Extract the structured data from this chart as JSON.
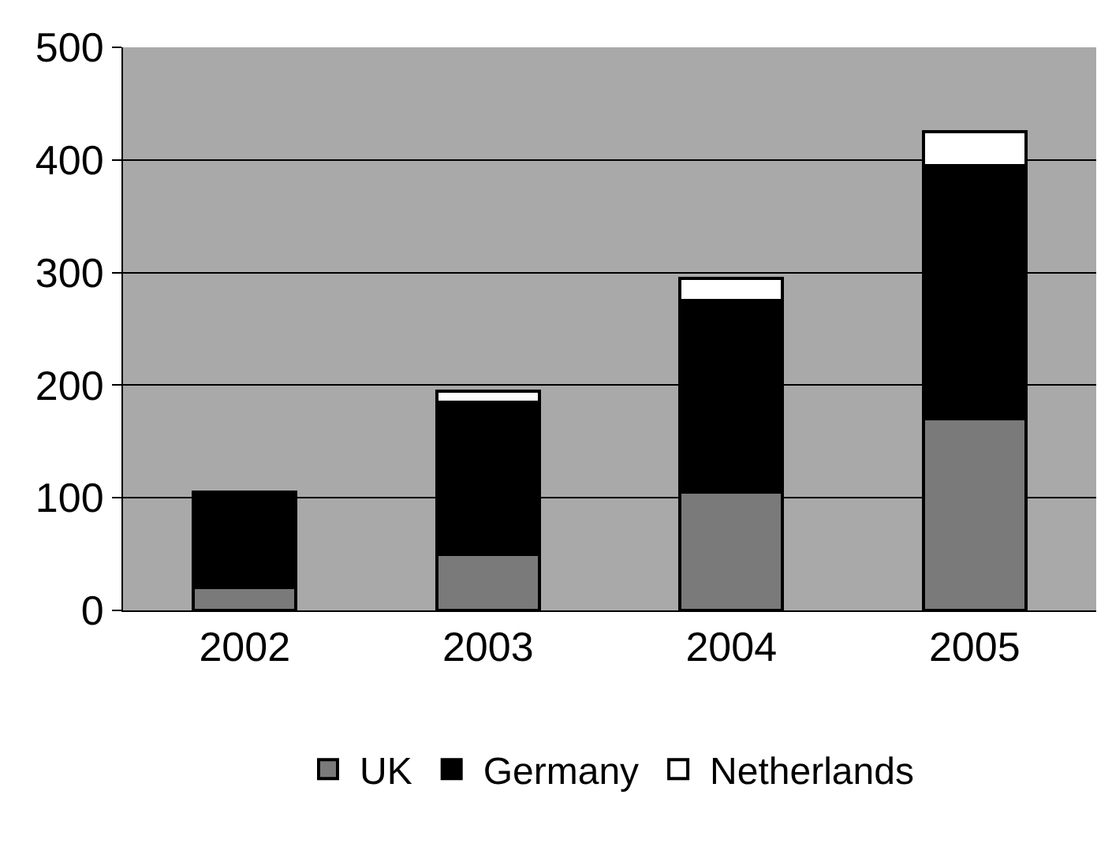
{
  "chart_data": {
    "type": "bar",
    "stacked": true,
    "categories": [
      "2002",
      "2003",
      "2004",
      "2005"
    ],
    "series": [
      {
        "name": "UK",
        "color": "#7a7a7a",
        "values": [
          20,
          50,
          105,
          170
        ]
      },
      {
        "name": "Germany",
        "color": "#000000",
        "values": [
          85,
          135,
          170,
          225
        ]
      },
      {
        "name": "Netherlands",
        "color": "#ffffff",
        "values": [
          null,
          10,
          20,
          30
        ]
      }
    ],
    "ylim": [
      0,
      500
    ],
    "yticks": [
      0,
      100,
      200,
      300,
      400,
      500
    ],
    "grid": "y",
    "legend": "bottom"
  }
}
